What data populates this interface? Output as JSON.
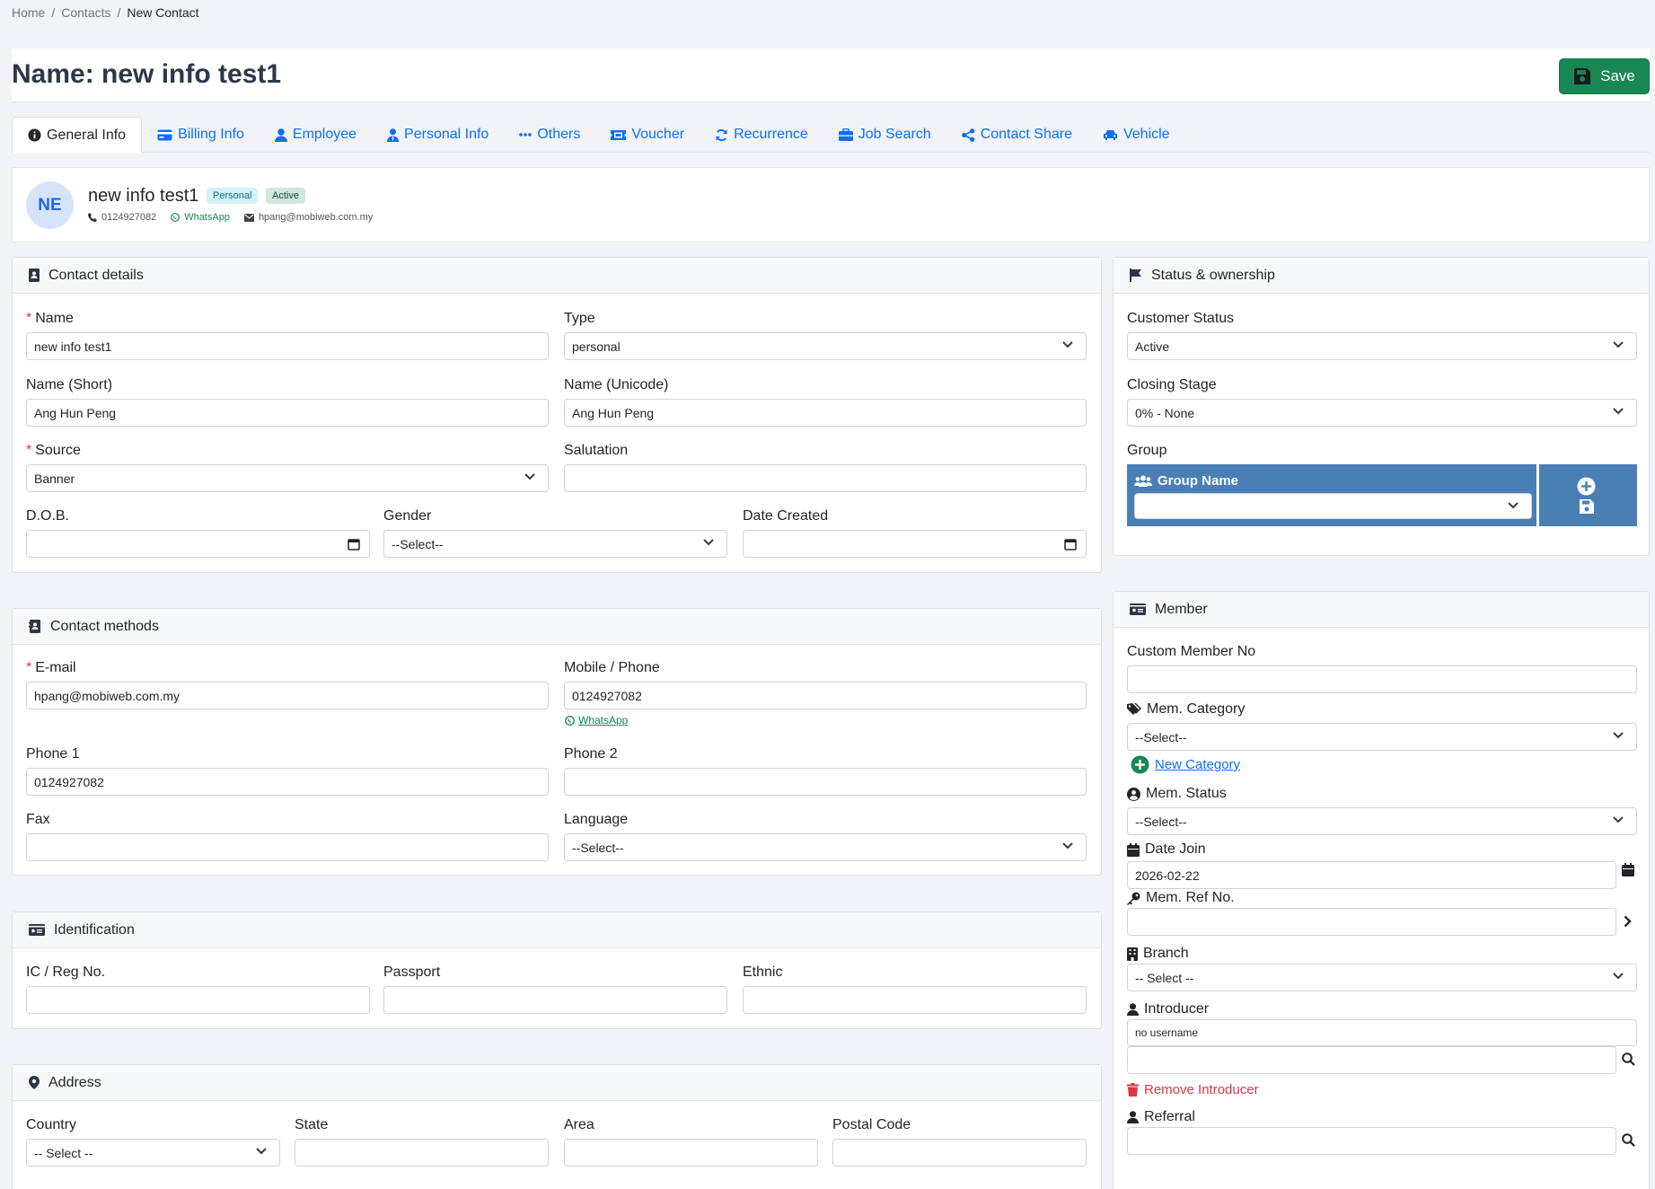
{
  "breadcrumb": [
    "Home",
    "Contacts",
    "New Contact"
  ],
  "page": {
    "title": "Name: new info test1",
    "save_label": "Save"
  },
  "tabs": [
    {
      "label": "General Info",
      "icon": "info-circle-icon"
    },
    {
      "label": "Billing Info",
      "icon": "credit-card-icon"
    },
    {
      "label": "Employee",
      "icon": "user-icon"
    },
    {
      "label": "Personal Info",
      "icon": "user-tie-icon"
    },
    {
      "label": "Others",
      "icon": "ellipsis-icon"
    },
    {
      "label": "Voucher",
      "icon": "ticket-icon"
    },
    {
      "label": "Recurrence",
      "icon": "sync-icon"
    },
    {
      "label": "Job Search",
      "icon": "briefcase-icon"
    },
    {
      "label": "Contact Share",
      "icon": "share-icon"
    },
    {
      "label": "Vehicle",
      "icon": "car-icon"
    }
  ],
  "profile": {
    "initials": "NE",
    "name": "new info test1",
    "badge_type": "Personal",
    "badge_status": "Active",
    "phone": "0124927082",
    "whatsapp": "WhatsApp",
    "email": "hpang@mobiweb.com.my"
  },
  "contact_details": {
    "header": "Contact details",
    "name_label": "Name",
    "name_value": "new info test1",
    "type_label": "Type",
    "type_value": "personal",
    "short_label": "Name (Short)",
    "short_value": "Ang Hun Peng",
    "unicode_label": "Name (Unicode)",
    "unicode_value": "Ang Hun Peng",
    "source_label": "Source",
    "source_value": "Banner",
    "salutation_label": "Salutation",
    "salutation_value": "",
    "dob_label": "D.O.B.",
    "dob_value": "",
    "gender_label": "Gender",
    "gender_value": "--Select--",
    "created_label": "Date Created",
    "created_value": ""
  },
  "contact_methods": {
    "header": "Contact methods",
    "email_label": "E-mail",
    "email_value": "hpang@mobiweb.com.my",
    "mobile_label": "Mobile / Phone",
    "mobile_value": "0124927082",
    "whatsapp_link": "WhatsApp",
    "phone1_label": "Phone 1",
    "phone1_value": "0124927082",
    "phone2_label": "Phone 2",
    "phone2_value": "",
    "fax_label": "Fax",
    "fax_value": "",
    "language_label": "Language",
    "language_value": "--Select--"
  },
  "identification": {
    "header": "Identification",
    "ic_label": "IC / Reg No.",
    "passport_label": "Passport",
    "ethnic_label": "Ethnic"
  },
  "address": {
    "header": "Address",
    "country_label": "Country",
    "country_value": "-- Select --",
    "state_label": "State",
    "area_label": "Area",
    "postal_label": "Postal Code"
  },
  "status": {
    "header": "Status & ownership",
    "customer_label": "Customer Status",
    "customer_value": "Active",
    "closing_label": "Closing Stage",
    "closing_value": "0% - None",
    "group_label": "Group",
    "group_name_label": "Group Name"
  },
  "member": {
    "header": "Member",
    "custom_no_label": "Custom Member No",
    "category_label": "Mem. Category",
    "category_value": "--Select--",
    "new_category": "New Category",
    "mstatus_label": "Mem. Status",
    "mstatus_value": "--Select--",
    "join_label": "Date Join",
    "join_value": "2026-02-22",
    "ref_label": "Mem. Ref No.",
    "branch_label": "Branch",
    "branch_value": "-- Select --",
    "introducer_label": "Introducer",
    "introducer_value": "no username",
    "remove_introducer": "Remove Introducer",
    "referral_label": "Referral"
  }
}
